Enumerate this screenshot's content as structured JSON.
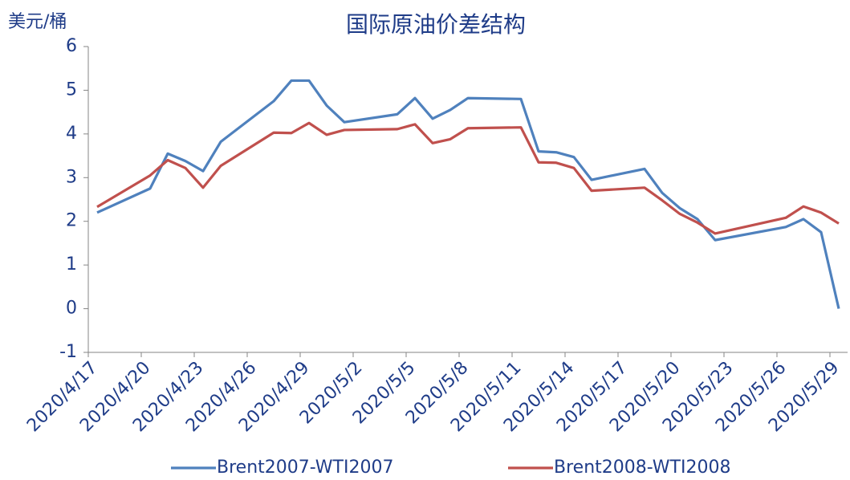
{
  "chart_data": {
    "type": "line",
    "title": "国际原油价差结构",
    "y_label": "美元/桶",
    "x": [
      "2020/4/17",
      "2020/4/20",
      "2020/4/21",
      "2020/4/22",
      "2020/4/23",
      "2020/4/24",
      "2020/4/27",
      "2020/4/28",
      "2020/4/29",
      "2020/4/30",
      "2020/5/1",
      "2020/5/4",
      "2020/5/5",
      "2020/5/6",
      "2020/5/7",
      "2020/5/8",
      "2020/5/11",
      "2020/5/12",
      "2020/5/13",
      "2020/5/14",
      "2020/5/15",
      "2020/5/18",
      "2020/5/19",
      "2020/5/20",
      "2020/5/21",
      "2020/5/22",
      "2020/5/26",
      "2020/5/27",
      "2020/5/28",
      "2020/5/29"
    ],
    "series": [
      {
        "name": "Brent2007-WTI2007",
        "color": "#4f81bd",
        "values": [
          2.2,
          2.75,
          3.55,
          3.38,
          3.15,
          3.82,
          4.75,
          5.22,
          5.22,
          4.65,
          4.27,
          4.45,
          4.82,
          4.35,
          4.55,
          4.82,
          4.8,
          3.6,
          3.58,
          3.47,
          2.95,
          3.2,
          2.65,
          2.3,
          2.05,
          1.57,
          1.87,
          2.05,
          1.75,
          0.0
        ]
      },
      {
        "name": "Brent2008-WTI2008",
        "color": "#c0504d",
        "values": [
          2.33,
          3.05,
          3.4,
          3.22,
          2.77,
          3.27,
          4.03,
          4.02,
          4.25,
          3.98,
          4.09,
          4.11,
          4.22,
          3.79,
          3.88,
          4.13,
          4.15,
          3.35,
          3.34,
          3.22,
          2.7,
          2.77,
          2.48,
          2.17,
          1.97,
          1.72,
          2.08,
          2.34,
          2.2,
          1.95
        ]
      }
    ],
    "xlim": [
      "2020/4/17",
      "2020/5/30"
    ],
    "xticks": [
      "2020/4/17",
      "2020/4/20",
      "2020/4/23",
      "2020/4/26",
      "2020/4/29",
      "2020/5/2",
      "2020/5/5",
      "2020/5/8",
      "2020/5/11",
      "2020/5/14",
      "2020/5/17",
      "2020/5/20",
      "2020/5/23",
      "2020/5/26",
      "2020/5/29"
    ],
    "ylim": [
      -1,
      6
    ],
    "yticks": [
      -1,
      0,
      1,
      2,
      3,
      4,
      5,
      6
    ],
    "grid": false,
    "legend": "bottom"
  }
}
